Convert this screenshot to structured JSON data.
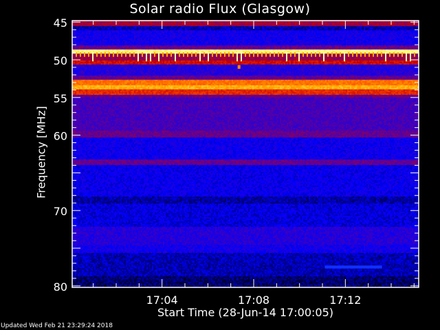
{
  "chart_data": {
    "type": "heatmap",
    "title": "Solar radio Flux (Glasgow)",
    "xlabel": "Start Time (28-Jun-14 17:00:05)",
    "ylabel": "Frequency [MHz]",
    "x_range_minutes": [
      0.08,
      15.2
    ],
    "ylim": [
      44.8,
      80.2
    ],
    "y_inverted": true,
    "x_ticks": [
      {
        "minute": 4,
        "label": "17:04"
      },
      {
        "minute": 8,
        "label": "17:08"
      },
      {
        "minute": 12,
        "label": "17:12"
      }
    ],
    "y_ticks": [
      45,
      50,
      55,
      60,
      70,
      80
    ],
    "colormap": [
      "#000000",
      "#0000ff",
      "#5a00a0",
      "#c80000",
      "#ff5000",
      "#ffb000",
      "#ffff80",
      "#ffffff"
    ],
    "frequency_bands": [
      {
        "f": [
          44.8,
          45.5
        ],
        "level": 0.38
      },
      {
        "f": [
          45.5,
          46.0
        ],
        "level": 0.1
      },
      {
        "f": [
          46.0,
          48.0
        ],
        "level": 0.17
      },
      {
        "f": [
          48.0,
          48.5
        ],
        "level": 0.3
      },
      {
        "f": [
          48.5,
          49.0
        ],
        "level": 0.85
      },
      {
        "f": [
          49.0,
          50.0
        ],
        "level": 0.36
      },
      {
        "f": [
          50.0,
          50.5
        ],
        "level": 0.45
      },
      {
        "f": [
          50.5,
          52.0
        ],
        "level": 0.2
      },
      {
        "f": [
          52.0,
          52.6
        ],
        "level": 0.3
      },
      {
        "f": [
          52.6,
          53.3
        ],
        "level": 0.62
      },
      {
        "f": [
          53.3,
          53.8
        ],
        "level": 0.72
      },
      {
        "f": [
          53.8,
          54.5
        ],
        "level": 0.5
      },
      {
        "f": [
          54.5,
          55.0
        ],
        "level": 0.3
      },
      {
        "f": [
          55.0,
          59.3
        ],
        "level": 0.25
      },
      {
        "f": [
          59.3,
          60.2
        ],
        "level": 0.3
      },
      {
        "f": [
          60.2,
          63.2
        ],
        "level": 0.16
      },
      {
        "f": [
          63.2,
          63.9
        ],
        "level": 0.3
      },
      {
        "f": [
          63.9,
          68.0
        ],
        "level": 0.15
      },
      {
        "f": [
          68.0,
          69.0
        ],
        "level": 0.09
      },
      {
        "f": [
          69.0,
          72.0
        ],
        "level": 0.13
      },
      {
        "f": [
          72.0,
          74.5
        ],
        "level": 0.2
      },
      {
        "f": [
          74.5,
          75.5
        ],
        "level": 0.17
      },
      {
        "f": [
          75.5,
          78.7
        ],
        "level": 0.1
      },
      {
        "f": [
          78.7,
          80.2
        ],
        "level": 0.06
      }
    ],
    "features": [
      {
        "kind": "periodic spikes",
        "f": [
          49.0,
          50.2
        ],
        "level": 0.7
      },
      {
        "kind": "burst",
        "minute": 7.3,
        "f": [
          50.7,
          51.2
        ],
        "level": 0.65
      },
      {
        "kind": "narrowband",
        "minute_range": [
          11.1,
          13.6
        ],
        "f": [
          77.3,
          77.7
        ],
        "level": 0.2
      }
    ]
  },
  "footer": {
    "updated": "Updated Wed Feb 21 23:29:24 2018"
  }
}
